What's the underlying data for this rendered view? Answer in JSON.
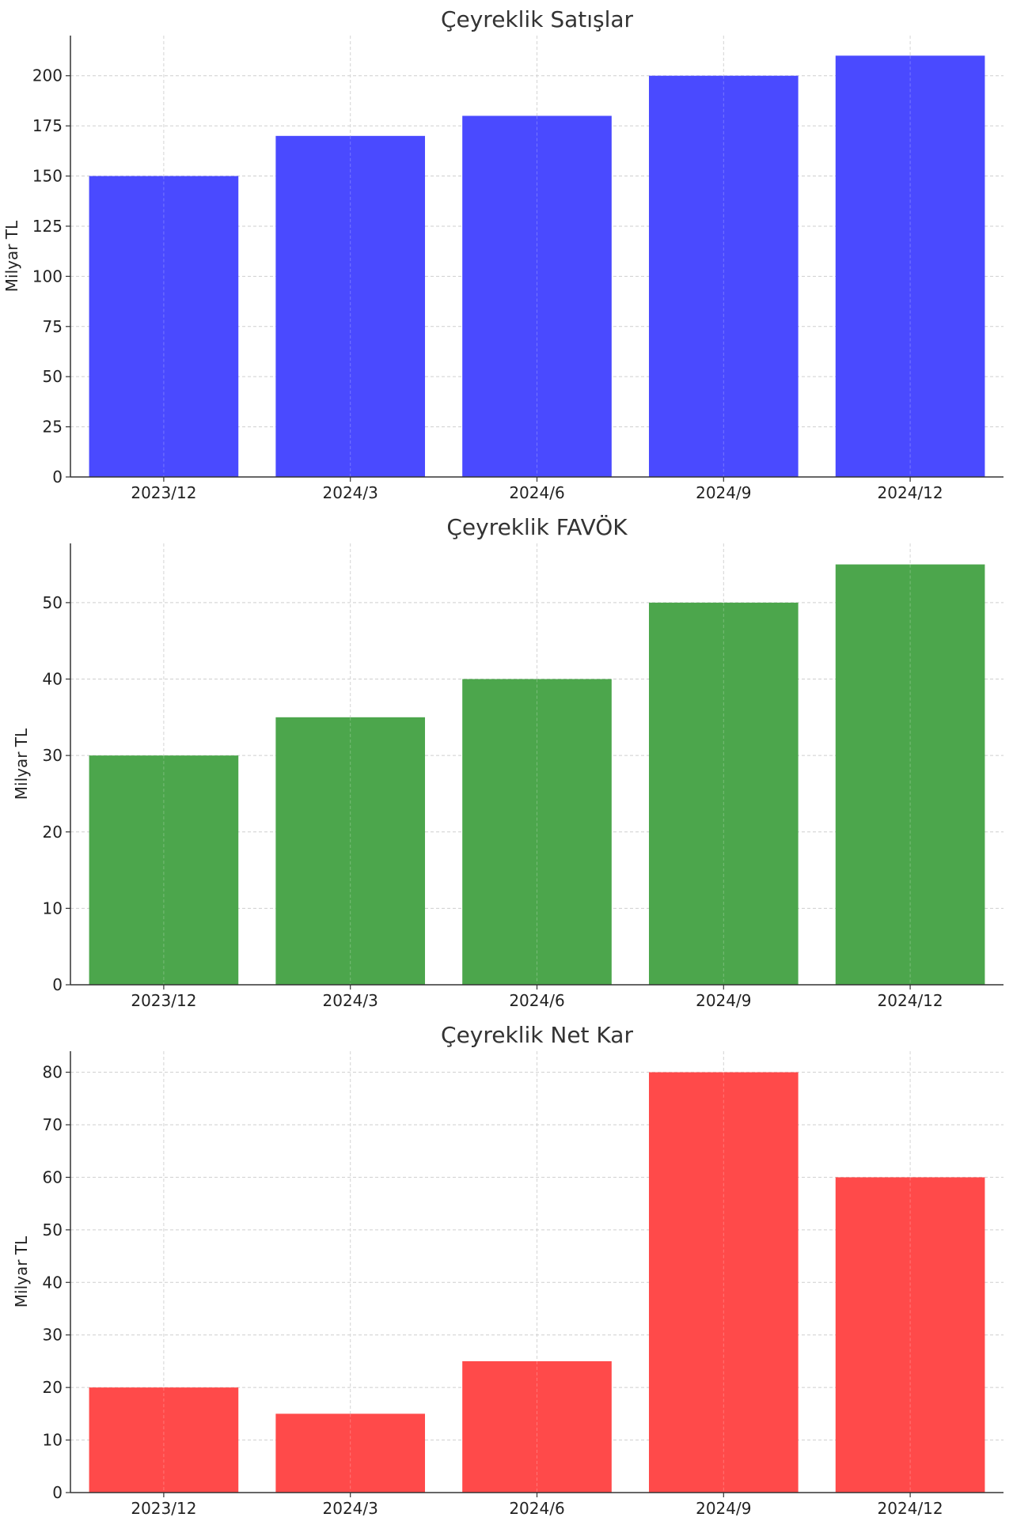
{
  "chart_data": [
    {
      "type": "bar",
      "title": "Çeyreklik Satışlar",
      "ylabel": "Milyar TL",
      "xlabel": "",
      "categories": [
        "2023/12",
        "2024/3",
        "2024/6",
        "2024/9",
        "2024/12"
      ],
      "values": [
        150,
        170,
        180,
        200,
        210
      ],
      "ylim": [
        0,
        220
      ],
      "yticks": [
        0,
        25,
        50,
        75,
        100,
        125,
        150,
        175,
        200
      ],
      "grid": true,
      "color": "#4a4aff"
    },
    {
      "type": "bar",
      "title": "Çeyreklik FAVÖK",
      "ylabel": "Milyar TL",
      "xlabel": "",
      "categories": [
        "2023/12",
        "2024/3",
        "2024/6",
        "2024/9",
        "2024/12"
      ],
      "values": [
        30,
        35,
        40,
        50,
        55
      ],
      "ylim": [
        0,
        57.75
      ],
      "yticks": [
        0,
        10,
        20,
        30,
        40,
        50
      ],
      "grid": true,
      "color": "#4ca64c"
    },
    {
      "type": "bar",
      "title": "Çeyreklik Net Kar",
      "ylabel": "Milyar TL",
      "xlabel": "",
      "categories": [
        "2023/12",
        "2024/3",
        "2024/6",
        "2024/9",
        "2024/12"
      ],
      "values": [
        20,
        15,
        25,
        80,
        60
      ],
      "ylim": [
        0,
        84
      ],
      "yticks": [
        0,
        10,
        20,
        30,
        40,
        50,
        60,
        70,
        80
      ],
      "grid": true,
      "color": "#ff4a4a"
    }
  ]
}
